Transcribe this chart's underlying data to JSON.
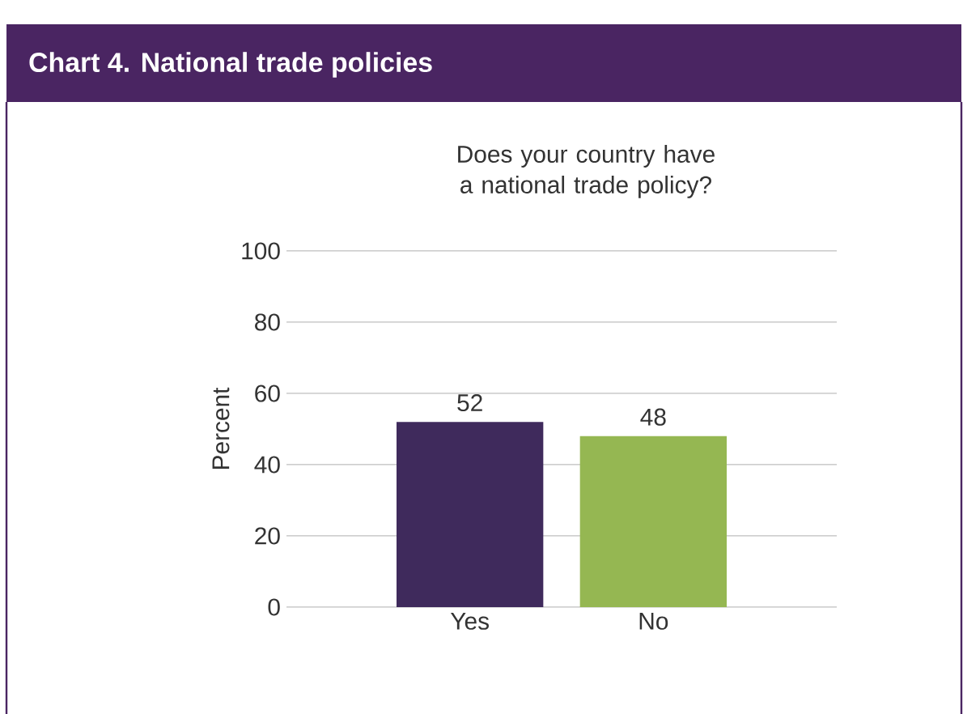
{
  "chart_data": {
    "type": "bar",
    "title": "Chart 4. National trade policies",
    "subtitle": "Does your country have a national trade policy?",
    "ylabel": "Percent",
    "categories": [
      "Yes",
      "No"
    ],
    "values": [
      52,
      48
    ],
    "colors": [
      "#3f2a5c",
      "#95b752"
    ],
    "ylim": [
      0,
      100
    ],
    "yticks": [
      0,
      20,
      40,
      60,
      80,
      100
    ],
    "grid": "y",
    "data_labels": true
  }
}
